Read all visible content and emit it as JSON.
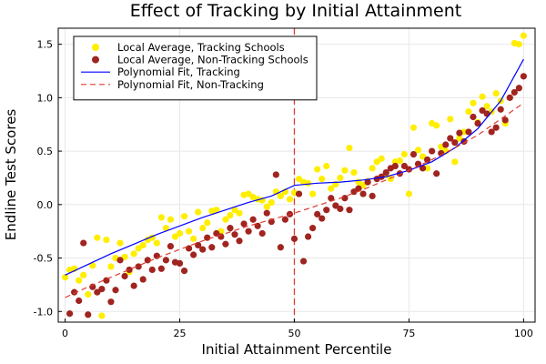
{
  "chart_data": {
    "type": "scatter",
    "title": "Effect of Tracking by Initial Attainment",
    "xlabel": "Initial Attainment Percentile",
    "ylabel": "Endline Test Scores",
    "xlim": [
      -1.5,
      102.5
    ],
    "ylim": [
      -1.1,
      1.65
    ],
    "x_ticks": [
      0,
      25,
      50,
      75,
      100
    ],
    "y_ticks": [
      -1.0,
      -0.5,
      0.0,
      0.5,
      1.0,
      1.5
    ],
    "x_tick_labels": [
      "0",
      "25",
      "50",
      "75",
      "100"
    ],
    "y_tick_labels": [
      "-1.0",
      "-0.5",
      "0.0",
      "0.5",
      "1.0",
      "1.5"
    ],
    "grid": true,
    "legend_position": "top-left",
    "threshold": {
      "x": 50,
      "color": "#e03c31",
      "style": "dashed"
    },
    "series": [
      {
        "name": "Local Average, Tracking Schools",
        "kind": "scatter",
        "color": "#ffee00",
        "points": [
          [
            0,
            -0.68
          ],
          [
            1,
            -0.61
          ],
          [
            2,
            -0.6
          ],
          [
            3,
            -0.71
          ],
          [
            4,
            -0.66
          ],
          [
            5,
            -0.84
          ],
          [
            6,
            -0.57
          ],
          [
            7,
            -0.31
          ],
          [
            8,
            -1.04
          ],
          [
            9,
            -0.33
          ],
          [
            10,
            -0.58
          ],
          [
            11,
            -0.5
          ],
          [
            12,
            -0.36
          ],
          [
            13,
            -0.49
          ],
          [
            14,
            -0.63
          ],
          [
            15,
            -0.46
          ],
          [
            16,
            -0.41
          ],
          [
            17,
            -0.38
          ],
          [
            18,
            -0.33
          ],
          [
            19,
            -0.31
          ],
          [
            20,
            -0.36
          ],
          [
            21,
            -0.12
          ],
          [
            22,
            -0.22
          ],
          [
            23,
            -0.14
          ],
          [
            24,
            -0.3
          ],
          [
            25,
            -0.27
          ],
          [
            26,
            -0.11
          ],
          [
            27,
            -0.25
          ],
          [
            28,
            -0.32
          ],
          [
            29,
            -0.07
          ],
          [
            30,
            -0.22
          ],
          [
            31,
            -0.17
          ],
          [
            32,
            -0.06
          ],
          [
            33,
            -0.05
          ],
          [
            34,
            -0.25
          ],
          [
            35,
            -0.14
          ],
          [
            36,
            -0.1
          ],
          [
            37,
            -0.05
          ],
          [
            38,
            -0.08
          ],
          [
            39,
            0.09
          ],
          [
            40,
            0.1
          ],
          [
            41,
            0.07
          ],
          [
            42,
            0.05
          ],
          [
            43,
            0.04
          ],
          [
            44,
            -0.02
          ],
          [
            45,
            0.02
          ],
          [
            46,
            0.12
          ],
          [
            47,
            0.08
          ],
          [
            48,
            0.12
          ],
          [
            49,
            0.05
          ],
          [
            50,
            0.11
          ],
          [
            51,
            0.24
          ],
          [
            52,
            0.21
          ],
          [
            53,
            0.2
          ],
          [
            54,
            0.1
          ],
          [
            55,
            0.33
          ],
          [
            56,
            0.24
          ],
          [
            57,
            0.36
          ],
          [
            58,
            0.15
          ],
          [
            59,
            0.19
          ],
          [
            60,
            0.25
          ],
          [
            61,
            0.32
          ],
          [
            62,
            0.53
          ],
          [
            63,
            0.3
          ],
          [
            64,
            0.21
          ],
          [
            65,
            0.18
          ],
          [
            66,
            0.22
          ],
          [
            67,
            0.34
          ],
          [
            68,
            0.4
          ],
          [
            69,
            0.43
          ],
          [
            70,
            0.28
          ],
          [
            71,
            0.24
          ],
          [
            72,
            0.4
          ],
          [
            73,
            0.41
          ],
          [
            74,
            0.47
          ],
          [
            75,
            0.1
          ],
          [
            76,
            0.72
          ],
          [
            77,
            0.51
          ],
          [
            78,
            0.45
          ],
          [
            79,
            0.34
          ],
          [
            80,
            0.76
          ],
          [
            81,
            0.74
          ],
          [
            82,
            0.54
          ],
          [
            83,
            0.5
          ],
          [
            84,
            0.8
          ],
          [
            85,
            0.4
          ],
          [
            86,
            0.62
          ],
          [
            87,
            0.68
          ],
          [
            88,
            0.87
          ],
          [
            89,
            0.95
          ],
          [
            90,
            0.77
          ],
          [
            91,
            1.01
          ],
          [
            92,
            0.92
          ],
          [
            93,
            0.87
          ],
          [
            94,
            1.04
          ],
          [
            95,
            0.97
          ],
          [
            96,
            0.76
          ],
          [
            97,
            1.0
          ],
          [
            98,
            1.51
          ],
          [
            99,
            1.5
          ],
          [
            100,
            1.58
          ]
        ]
      },
      {
        "name": "Local Average, Non-Tracking Schools",
        "kind": "scatter",
        "color": "#a0241f",
        "points": [
          [
            1,
            -1.02
          ],
          [
            2,
            -0.82
          ],
          [
            3,
            -0.9
          ],
          [
            4,
            -0.36
          ],
          [
            5,
            -1.03
          ],
          [
            6,
            -0.77
          ],
          [
            7,
            -0.82
          ],
          [
            8,
            -0.79
          ],
          [
            9,
            -0.71
          ],
          [
            10,
            -0.91
          ],
          [
            11,
            -0.8
          ],
          [
            12,
            -0.52
          ],
          [
            13,
            -0.67
          ],
          [
            14,
            -0.61
          ],
          [
            15,
            -0.76
          ],
          [
            16,
            -0.58
          ],
          [
            17,
            -0.7
          ],
          [
            18,
            -0.52
          ],
          [
            19,
            -0.61
          ],
          [
            20,
            -0.48
          ],
          [
            21,
            -0.6
          ],
          [
            22,
            -0.52
          ],
          [
            23,
            -0.39
          ],
          [
            24,
            -0.54
          ],
          [
            25,
            -0.55
          ],
          [
            26,
            -0.62
          ],
          [
            27,
            -0.41
          ],
          [
            28,
            -0.47
          ],
          [
            29,
            -0.38
          ],
          [
            30,
            -0.42
          ],
          [
            31,
            -0.31
          ],
          [
            32,
            -0.4
          ],
          [
            33,
            -0.27
          ],
          [
            34,
            -0.3
          ],
          [
            35,
            -0.37
          ],
          [
            36,
            -0.22
          ],
          [
            37,
            -0.28
          ],
          [
            38,
            -0.34
          ],
          [
            39,
            -0.18
          ],
          [
            40,
            -0.25
          ],
          [
            41,
            -0.14
          ],
          [
            42,
            -0.2
          ],
          [
            43,
            -0.27
          ],
          [
            44,
            -0.08
          ],
          [
            45,
            -0.16
          ],
          [
            46,
            0.28
          ],
          [
            47,
            -0.4
          ],
          [
            48,
            -0.14
          ],
          [
            49,
            -0.09
          ],
          [
            50,
            -0.32
          ],
          [
            51,
            0.1
          ],
          [
            52,
            -0.53
          ],
          [
            53,
            -0.3
          ],
          [
            54,
            -0.22
          ],
          [
            55,
            -0.09
          ],
          [
            56,
            -0.13
          ],
          [
            57,
            -0.05
          ],
          [
            58,
            0.06
          ],
          [
            59,
            -0.01
          ],
          [
            60,
            -0.04
          ],
          [
            61,
            0.06
          ],
          [
            62,
            -0.05
          ],
          [
            63,
            0.12
          ],
          [
            64,
            0.15
          ],
          [
            65,
            0.1
          ],
          [
            66,
            0.21
          ],
          [
            67,
            0.08
          ],
          [
            68,
            0.24
          ],
          [
            69,
            0.26
          ],
          [
            70,
            0.3
          ],
          [
            71,
            0.34
          ],
          [
            72,
            0.36
          ],
          [
            73,
            0.29
          ],
          [
            74,
            0.36
          ],
          [
            75,
            0.33
          ],
          [
            76,
            0.47
          ],
          [
            77,
            0.38
          ],
          [
            78,
            0.34
          ],
          [
            79,
            0.42
          ],
          [
            80,
            0.5
          ],
          [
            81,
            0.29
          ],
          [
            82,
            0.48
          ],
          [
            83,
            0.56
          ],
          [
            84,
            0.62
          ],
          [
            85,
            0.58
          ],
          [
            86,
            0.67
          ],
          [
            87,
            0.59
          ],
          [
            88,
            0.68
          ],
          [
            89,
            0.82
          ],
          [
            90,
            0.76
          ],
          [
            91,
            0.88
          ],
          [
            92,
            0.85
          ],
          [
            93,
            0.68
          ],
          [
            94,
            0.72
          ],
          [
            95,
            0.89
          ],
          [
            96,
            0.79
          ],
          [
            97,
            1.0
          ],
          [
            98,
            1.05
          ],
          [
            99,
            1.09
          ],
          [
            100,
            1.2
          ]
        ]
      },
      {
        "name": "Polynomial Fit, Tracking",
        "kind": "line",
        "color": "#0000ff",
        "style": "solid",
        "points": [
          [
            0,
            -0.66
          ],
          [
            5,
            -0.56
          ],
          [
            10,
            -0.46
          ],
          [
            15,
            -0.37
          ],
          [
            20,
            -0.28
          ],
          [
            25,
            -0.2
          ],
          [
            30,
            -0.12
          ],
          [
            35,
            -0.05
          ],
          [
            40,
            0.02
          ],
          [
            45,
            0.08
          ],
          [
            50,
            0.18
          ],
          [
            55,
            0.2
          ],
          [
            60,
            0.21
          ],
          [
            65,
            0.23
          ],
          [
            70,
            0.26
          ],
          [
            75,
            0.32
          ],
          [
            80,
            0.4
          ],
          [
            85,
            0.53
          ],
          [
            90,
            0.71
          ],
          [
            95,
            0.97
          ],
          [
            100,
            1.36
          ]
        ]
      },
      {
        "name": "Polynomial Fit, Non-Tracking",
        "kind": "line",
        "color": "#e03c31",
        "style": "dashed",
        "points": [
          [
            0,
            -0.87
          ],
          [
            5,
            -0.77
          ],
          [
            10,
            -0.68
          ],
          [
            15,
            -0.59
          ],
          [
            20,
            -0.5
          ],
          [
            25,
            -0.42
          ],
          [
            30,
            -0.34
          ],
          [
            35,
            -0.27
          ],
          [
            40,
            -0.2
          ],
          [
            45,
            -0.14
          ],
          [
            50,
            -0.08
          ],
          [
            55,
            -0.01
          ],
          [
            60,
            0.06
          ],
          [
            65,
            0.14
          ],
          [
            70,
            0.23
          ],
          [
            75,
            0.32
          ],
          [
            80,
            0.42
          ],
          [
            85,
            0.53
          ],
          [
            90,
            0.65
          ],
          [
            95,
            0.8
          ],
          [
            100,
            0.95
          ]
        ]
      }
    ]
  }
}
